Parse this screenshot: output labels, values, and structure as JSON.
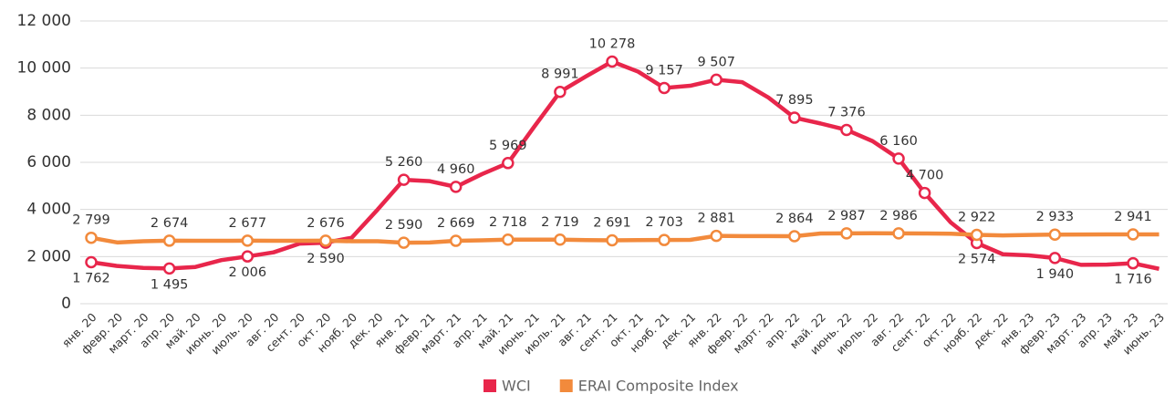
{
  "chart_data": {
    "type": "line",
    "categories": [
      "янв. 20",
      "февр. 20",
      "март. 20",
      "апр. 20",
      "май. 20",
      "июнь. 20",
      "июль. 20",
      "авг. 20",
      "сент. 20",
      "окт. 20",
      "нояб. 20",
      "дек. 20",
      "янв. 21",
      "февр. 21",
      "март. 21",
      "апр. 21",
      "май. 21",
      "июнь. 21",
      "июль. 21",
      "авг. 21",
      "сент. 21",
      "окт. 21",
      "нояб. 21",
      "дек. 21",
      "янв. 22",
      "февр. 22",
      "март. 22",
      "апр. 22",
      "май. 22",
      "июнь. 22",
      "июль. 22",
      "авг. 22",
      "сент. 22",
      "окт. 22",
      "нояб. 22",
      "дек. 22",
      "янв. 23",
      "февр. 23",
      "март. 23",
      "апр. 23",
      "май. 23",
      "июнь. 23"
    ],
    "series": [
      {
        "name": "WCI",
        "color": "#e8264b",
        "values": [
          1762,
          1600,
          1520,
          1495,
          1560,
          1850,
          2006,
          2180,
          2550,
          2590,
          2800,
          4000,
          5260,
          5200,
          4960,
          5500,
          5969,
          7500,
          8991,
          9650,
          10278,
          9850,
          9157,
          9250,
          9507,
          9400,
          8750,
          7895,
          7650,
          7376,
          6900,
          6160,
          4700,
          3450,
          2574,
          2100,
          2050,
          1940,
          1650,
          1660,
          1716,
          1480
        ],
        "value_labels": [
          "1 762",
          null,
          null,
          "1 495",
          null,
          null,
          "2 006",
          null,
          null,
          "2 590",
          null,
          null,
          "5 260",
          null,
          "4 960",
          null,
          "5 969",
          null,
          "8 991",
          null,
          "10 278",
          null,
          "9 157",
          null,
          "9 507",
          null,
          null,
          "7 895",
          null,
          "7 376",
          null,
          "6 160",
          "4 700",
          null,
          "2 574",
          null,
          null,
          "1 940",
          null,
          null,
          "1 716",
          null
        ]
      },
      {
        "name": "ERAI Composite Index",
        "color": "#f28a3c",
        "values": [
          2799,
          2600,
          2650,
          2674,
          2670,
          2670,
          2677,
          2670,
          2670,
          2676,
          2650,
          2650,
          2590,
          2600,
          2669,
          2690,
          2718,
          2720,
          2719,
          2700,
          2691,
          2700,
          2703,
          2710,
          2881,
          2870,
          2870,
          2864,
          2980,
          2987,
          2990,
          2986,
          2980,
          2970,
          2922,
          2900,
          2920,
          2933,
          2935,
          2940,
          2941,
          2940
        ],
        "value_labels": [
          "2 799",
          null,
          null,
          "2 674",
          null,
          null,
          "2 677",
          null,
          null,
          "2 676",
          null,
          null,
          "2 590",
          null,
          "2 669",
          null,
          "2 718",
          null,
          "2 719",
          null,
          "2 691",
          null,
          "2 703",
          null,
          "2 881",
          null,
          null,
          "2 864",
          null,
          "2 987",
          null,
          "2 986",
          null,
          null,
          "2 922",
          null,
          null,
          "2 933",
          null,
          null,
          "2 941",
          null
        ]
      }
    ],
    "ylim": [
      0,
      12000
    ],
    "yticks": [
      0,
      {
        "value": 2000,
        "label": "2 000"
      },
      {
        "value": 4000,
        "label": "4 000"
      },
      {
        "value": 6000,
        "label": "6 000"
      },
      {
        "value": 8000,
        "label": "8 000"
      },
      {
        "value": 10000,
        "label": "10 000"
      },
      {
        "value": 12000,
        "label": "12 000"
      }
    ],
    "grid": true,
    "legend": "bottom"
  }
}
